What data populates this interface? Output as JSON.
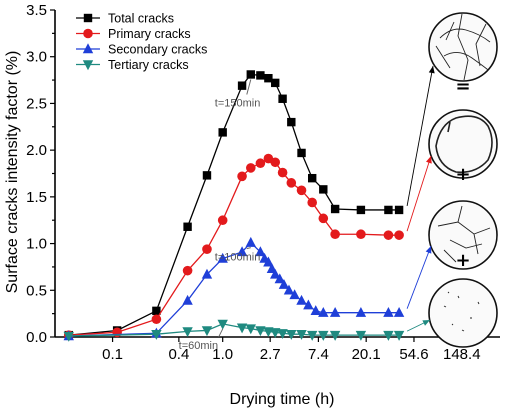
{
  "chart_data": {
    "type": "line",
    "xlabel": "Drying time (h)",
    "ylabel": "Surface cracks intensity factor (%)",
    "x_scale": "log",
    "x_ticks": [
      0.1,
      0.4,
      1.0,
      2.7,
      7.4,
      20.1,
      54.6,
      148.4
    ],
    "x_tick_labels": [
      "0.1",
      "0.4",
      "1.0",
      "2.7",
      "7.4",
      "20.1",
      "54.6",
      "148.4"
    ],
    "ylim": [
      0,
      3.5
    ],
    "y_ticks": [
      0.0,
      0.5,
      1.0,
      1.5,
      2.0,
      2.5,
      3.0,
      3.5
    ],
    "y_tick_labels": [
      "0.0",
      "0.5",
      "1.0",
      "1.5",
      "2.0",
      "2.5",
      "3.0",
      "3.5"
    ],
    "legend_position": "top-left",
    "series": [
      {
        "name": "Total cracks",
        "color": "#000000",
        "marker": "square",
        "x": [
          0.04,
          0.11,
          0.25,
          0.48,
          0.72,
          1.0,
          1.5,
          1.8,
          2.2,
          2.6,
          3.0,
          3.5,
          4.2,
          5.2,
          6.5,
          8.2,
          10.5,
          18.0,
          32.0,
          40.0
        ],
        "y": [
          0.02,
          0.07,
          0.28,
          1.18,
          1.73,
          2.19,
          2.69,
          2.81,
          2.8,
          2.77,
          2.72,
          2.55,
          2.3,
          1.97,
          1.7,
          1.58,
          1.37,
          1.36,
          1.36,
          1.36
        ]
      },
      {
        "name": "Primary cracks",
        "color": "#e31a1c",
        "marker": "circle",
        "x": [
          0.04,
          0.11,
          0.25,
          0.48,
          0.72,
          1.0,
          1.5,
          1.8,
          2.2,
          2.6,
          3.0,
          3.5,
          4.2,
          5.2,
          6.5,
          8.2,
          10.5,
          18.0,
          32.0,
          40.0
        ],
        "y": [
          0.02,
          0.05,
          0.19,
          0.71,
          0.94,
          1.25,
          1.72,
          1.81,
          1.86,
          1.91,
          1.87,
          1.76,
          1.65,
          1.57,
          1.44,
          1.27,
          1.1,
          1.1,
          1.09,
          1.09
        ]
      },
      {
        "name": "Secondary cracks",
        "color": "#1f3fd8",
        "marker": "triangle-up",
        "x": [
          0.04,
          0.25,
          0.48,
          0.72,
          1.0,
          1.5,
          1.8,
          2.2,
          2.4,
          2.6,
          2.8,
          3.0,
          3.3,
          3.6,
          4.0,
          4.5,
          5.2,
          6.0,
          7.0,
          8.2,
          10.5,
          18.0,
          32.0,
          40.0
        ],
        "y": [
          0.01,
          0.04,
          0.39,
          0.67,
          0.84,
          0.91,
          1.01,
          0.91,
          0.84,
          0.8,
          0.73,
          0.67,
          0.62,
          0.56,
          0.5,
          0.45,
          0.39,
          0.34,
          0.28,
          0.26,
          0.26,
          0.26,
          0.26,
          0.26
        ]
      },
      {
        "name": "Tertiary cracks",
        "color": "#1f8a80",
        "marker": "triangle-down",
        "x": [
          0.04,
          0.25,
          0.48,
          0.72,
          1.0,
          1.5,
          1.8,
          2.2,
          2.6,
          3.0,
          3.5,
          4.2,
          5.2,
          6.5,
          8.2,
          10.5,
          18.0,
          32.0,
          40.0
        ],
        "y": [
          0.01,
          0.03,
          0.06,
          0.07,
          0.14,
          0.1,
          0.09,
          0.07,
          0.06,
          0.05,
          0.04,
          0.03,
          0.03,
          0.02,
          0.02,
          0.02,
          0.02,
          0.02,
          0.02
        ]
      }
    ],
    "annotations": [
      {
        "text": "t=150min",
        "x": 1.8,
        "y": 2.81
      },
      {
        "text": "t=100min",
        "x": 1.8,
        "y": 1.01
      },
      {
        "text": "t=60min",
        "x": 1.0,
        "y": 0.14
      }
    ],
    "side_panel_symbols": [
      "=",
      "+",
      "+"
    ]
  }
}
